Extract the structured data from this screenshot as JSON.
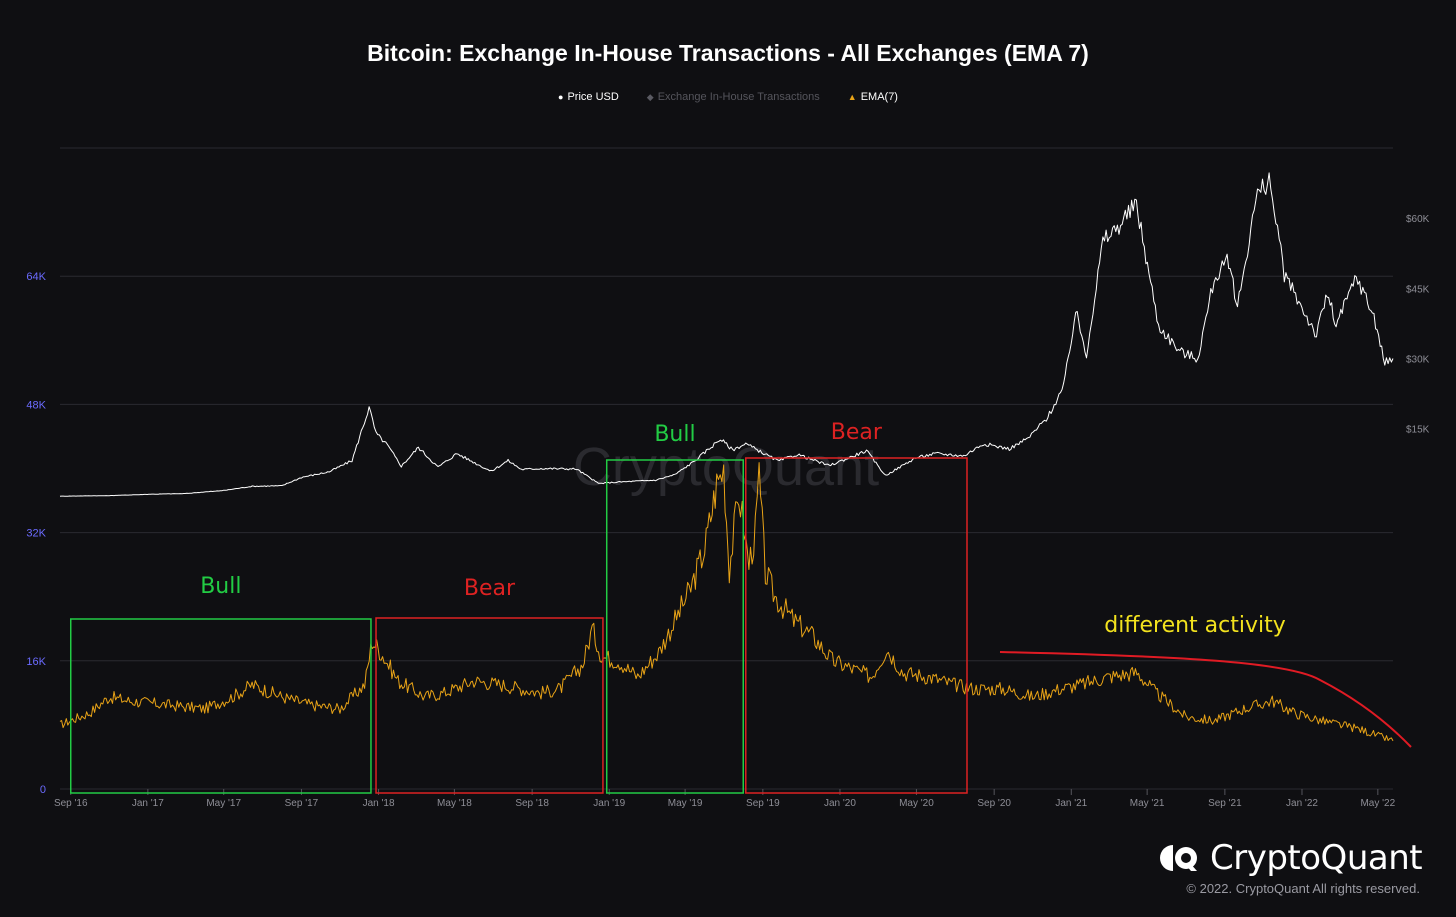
{
  "chart_data": {
    "type": "line",
    "title": "Bitcoin: Exchange In-House Transactions - All Exchanges (EMA 7)",
    "legend": {
      "placement": "top-center",
      "items": [
        {
          "name": "Price USD",
          "marker": "●",
          "color": "#ffffff",
          "active": true
        },
        {
          "name": "Exchange In-House Transactions",
          "marker": "◆",
          "color": "#5a5a62",
          "active": false
        },
        {
          "name": "EMA(7)",
          "marker": "▲",
          "color": "#e8a317",
          "active": true
        }
      ]
    },
    "x_ticks": [
      "Sep '16",
      "Jan '17",
      "May '17",
      "Sep '17",
      "Jan '18",
      "May '18",
      "Sep '18",
      "Jan '19",
      "May '19",
      "Sep '19",
      "Jan '20",
      "May '20",
      "Sep '20",
      "Jan '21",
      "May '21",
      "Sep '21",
      "Jan '22",
      "May '22"
    ],
    "x_range": [
      "2016-08-15",
      "2022-05-25"
    ],
    "y_left": {
      "ticks": [
        "0",
        "16K",
        "32K",
        "48K",
        "64K"
      ],
      "min": 0,
      "max": 80000
    },
    "y_right": {
      "ticks": [
        "$15K",
        "$30K",
        "$45K",
        "$60K"
      ],
      "min": -62000,
      "max": 75000
    },
    "grid": true,
    "watermark": "CryptoQuant",
    "series": [
      {
        "name": "EMA(7)",
        "axis": "left",
        "color": "#e8a317",
        "points": [
          [
            "2016-08-15",
            8000
          ],
          [
            "2016-10-01",
            9500
          ],
          [
            "2016-11-01",
            11500
          ],
          [
            "2016-12-01",
            11000
          ],
          [
            "2017-02-01",
            10500
          ],
          [
            "2017-04-01",
            10000
          ],
          [
            "2017-05-15",
            11500
          ],
          [
            "2017-06-15",
            13000
          ],
          [
            "2017-08-01",
            11500
          ],
          [
            "2017-09-15",
            10500
          ],
          [
            "2017-11-01",
            10000
          ],
          [
            "2017-12-10",
            13000
          ],
          [
            "2017-12-22",
            18500
          ],
          [
            "2018-01-05",
            17000
          ],
          [
            "2018-02-01",
            13500
          ],
          [
            "2018-03-15",
            11500
          ],
          [
            "2018-04-15",
            12000
          ],
          [
            "2018-06-01",
            13500
          ],
          [
            "2018-07-15",
            13000
          ],
          [
            "2018-09-15",
            12000
          ],
          [
            "2018-10-15",
            12500
          ],
          [
            "2018-11-20",
            15500
          ],
          [
            "2018-12-05",
            20000
          ],
          [
            "2018-12-20",
            16500
          ],
          [
            "2019-01-15",
            16000
          ],
          [
            "2019-02-15",
            14000
          ],
          [
            "2019-03-20",
            17000
          ],
          [
            "2019-04-15",
            21000
          ],
          [
            "2019-05-10",
            25000
          ],
          [
            "2019-06-01",
            30000
          ],
          [
            "2019-06-20",
            38000
          ],
          [
            "2019-07-01",
            40000
          ],
          [
            "2019-07-10",
            27500
          ],
          [
            "2019-07-25",
            37000
          ],
          [
            "2019-08-10",
            28000
          ],
          [
            "2019-08-20",
            32000
          ],
          [
            "2019-08-26",
            39000
          ],
          [
            "2019-09-05",
            27000
          ],
          [
            "2019-09-20",
            24000
          ],
          [
            "2019-10-20",
            21000
          ],
          [
            "2019-11-20",
            19000
          ],
          [
            "2019-12-20",
            16000
          ],
          [
            "2020-01-20",
            15000
          ],
          [
            "2020-02-20",
            14000
          ],
          [
            "2020-03-15",
            17500
          ],
          [
            "2020-04-10",
            14500
          ],
          [
            "2020-05-20",
            14000
          ],
          [
            "2020-07-01",
            13000
          ],
          [
            "2020-08-01",
            12500
          ],
          [
            "2020-09-15",
            12500
          ],
          [
            "2020-11-01",
            11500
          ],
          [
            "2020-12-15",
            12500
          ],
          [
            "2021-01-15",
            13000
          ],
          [
            "2021-03-01",
            14000
          ],
          [
            "2021-04-15",
            14500
          ],
          [
            "2021-05-15",
            12000
          ],
          [
            "2021-07-01",
            9000
          ],
          [
            "2021-08-15",
            8500
          ],
          [
            "2021-10-01",
            10000
          ],
          [
            "2021-11-15",
            11000
          ],
          [
            "2021-12-20",
            9500
          ],
          [
            "2022-02-01",
            8500
          ],
          [
            "2022-04-01",
            7500
          ],
          [
            "2022-05-25",
            6000
          ]
        ]
      },
      {
        "name": "Price USD",
        "axis": "right",
        "color": "#ffffff",
        "points": [
          [
            "2016-08-15",
            580
          ],
          [
            "2016-11-01",
            700
          ],
          [
            "2017-01-05",
            1000
          ],
          [
            "2017-03-01",
            1150
          ],
          [
            "2017-05-01",
            1800
          ],
          [
            "2017-06-15",
            2700
          ],
          [
            "2017-08-01",
            2800
          ],
          [
            "2017-09-01",
            4600
          ],
          [
            "2017-10-15",
            5800
          ],
          [
            "2017-11-20",
            8200
          ],
          [
            "2017-12-17",
            19500
          ],
          [
            "2017-12-28",
            14000
          ],
          [
            "2018-01-15",
            11500
          ],
          [
            "2018-02-06",
            7000
          ],
          [
            "2018-03-05",
            11000
          ],
          [
            "2018-04-05",
            6800
          ],
          [
            "2018-05-05",
            9700
          ],
          [
            "2018-06-28",
            5900
          ],
          [
            "2018-07-25",
            8200
          ],
          [
            "2018-08-15",
            6300
          ],
          [
            "2018-09-15",
            6500
          ],
          [
            "2018-11-10",
            6400
          ],
          [
            "2018-12-15",
            3300
          ],
          [
            "2019-01-15",
            3600
          ],
          [
            "2019-03-15",
            4000
          ],
          [
            "2019-04-15",
            5200
          ],
          [
            "2019-05-15",
            8000
          ],
          [
            "2019-06-26",
            12800
          ],
          [
            "2019-07-15",
            10500
          ],
          [
            "2019-08-05",
            11800
          ],
          [
            "2019-09-25",
            8100
          ],
          [
            "2019-10-26",
            9500
          ],
          [
            "2019-12-15",
            7100
          ],
          [
            "2020-02-12",
            10300
          ],
          [
            "2020-03-13",
            5000
          ],
          [
            "2020-04-30",
            8800
          ],
          [
            "2020-06-01",
            9700
          ],
          [
            "2020-07-15",
            9200
          ],
          [
            "2020-08-15",
            11800
          ],
          [
            "2020-09-25",
            10700
          ],
          [
            "2020-10-25",
            13000
          ],
          [
            "2020-11-25",
            17500
          ],
          [
            "2020-12-20",
            24000
          ],
          [
            "2021-01-08",
            40000
          ],
          [
            "2021-01-25",
            31000
          ],
          [
            "2021-02-20",
            55000
          ],
          [
            "2021-03-15",
            58000
          ],
          [
            "2021-04-14",
            63000
          ],
          [
            "2021-05-19",
            37000
          ],
          [
            "2021-06-22",
            31500
          ],
          [
            "2021-07-20",
            30000
          ],
          [
            "2021-08-15",
            47000
          ],
          [
            "2021-09-07",
            51000
          ],
          [
            "2021-09-21",
            41000
          ],
          [
            "2021-10-20",
            64000
          ],
          [
            "2021-11-10",
            68500
          ],
          [
            "2021-12-04",
            48000
          ],
          [
            "2022-01-24",
            35000
          ],
          [
            "2022-02-10",
            44000
          ],
          [
            "2022-02-24",
            37000
          ],
          [
            "2022-03-28",
            47500
          ],
          [
            "2022-04-25",
            39000
          ],
          [
            "2022-05-12",
            29000
          ],
          [
            "2022-05-25",
            30000
          ]
        ]
      }
    ],
    "annotations": [
      {
        "label": "Bull",
        "color": "#22cc44",
        "from": "2016-09-01",
        "to": "2017-12-20"
      },
      {
        "label": "Bear",
        "color": "#dd2222",
        "from": "2017-12-28",
        "to": "2018-12-22"
      },
      {
        "label": "Bull",
        "color": "#22cc44",
        "from": "2018-12-28",
        "to": "2019-08-01"
      },
      {
        "label": "Bear",
        "color": "#dd2222",
        "from": "2019-08-05",
        "to": "2020-07-20"
      },
      {
        "label": "different activity",
        "color": "#f2e21e",
        "trend_color": "#e01b24"
      }
    ]
  },
  "logo": {
    "text": "CryptoQuant"
  },
  "copyright": "© 2022. CryptoQuant All rights reserved."
}
